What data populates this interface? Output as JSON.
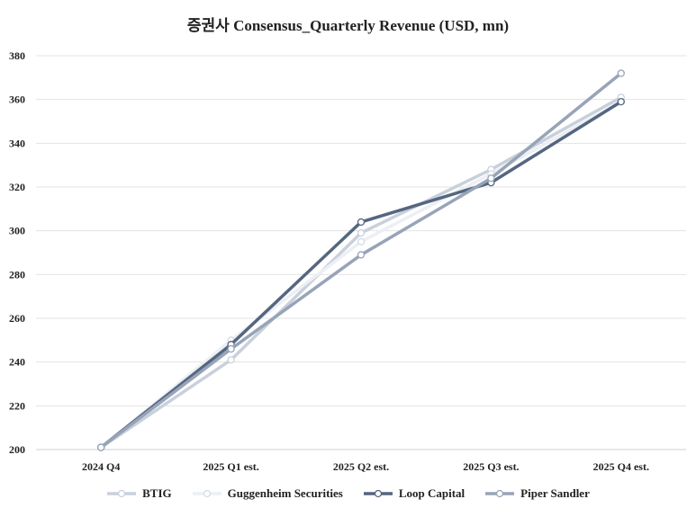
{
  "chart_data": {
    "type": "line",
    "title": "증권사 Consensus_Quarterly Revenue (USD, mn)",
    "categories": [
      "2024 Q4",
      "2025 Q1 est.",
      "2025 Q2 est.",
      "2025 Q3 est.",
      "2025 Q4 est."
    ],
    "ylim": [
      200,
      380
    ],
    "yticks": [
      200,
      220,
      240,
      260,
      280,
      300,
      320,
      340,
      360,
      380
    ],
    "grid": true,
    "legend_position": "bottom",
    "series": [
      {
        "name": "BTIG",
        "values": [
          201,
          241,
          299,
          328,
          361
        ],
        "color": "#c8d0db",
        "marker_fill": "#ffffff"
      },
      {
        "name": "Guggenheim Securities",
        "values": [
          201,
          250,
          295,
          326,
          359
        ],
        "color": "#eceff4",
        "marker_fill": "#ffffff"
      },
      {
        "name": "Loop Capital",
        "values": [
          201,
          248,
          304,
          322,
          359
        ],
        "color": "#556680",
        "marker_fill": "#ffffff"
      },
      {
        "name": "Piper Sandler",
        "values": [
          201,
          246,
          289,
          324,
          372
        ],
        "color": "#97a4b8",
        "marker_fill": "#ffffff"
      }
    ]
  }
}
